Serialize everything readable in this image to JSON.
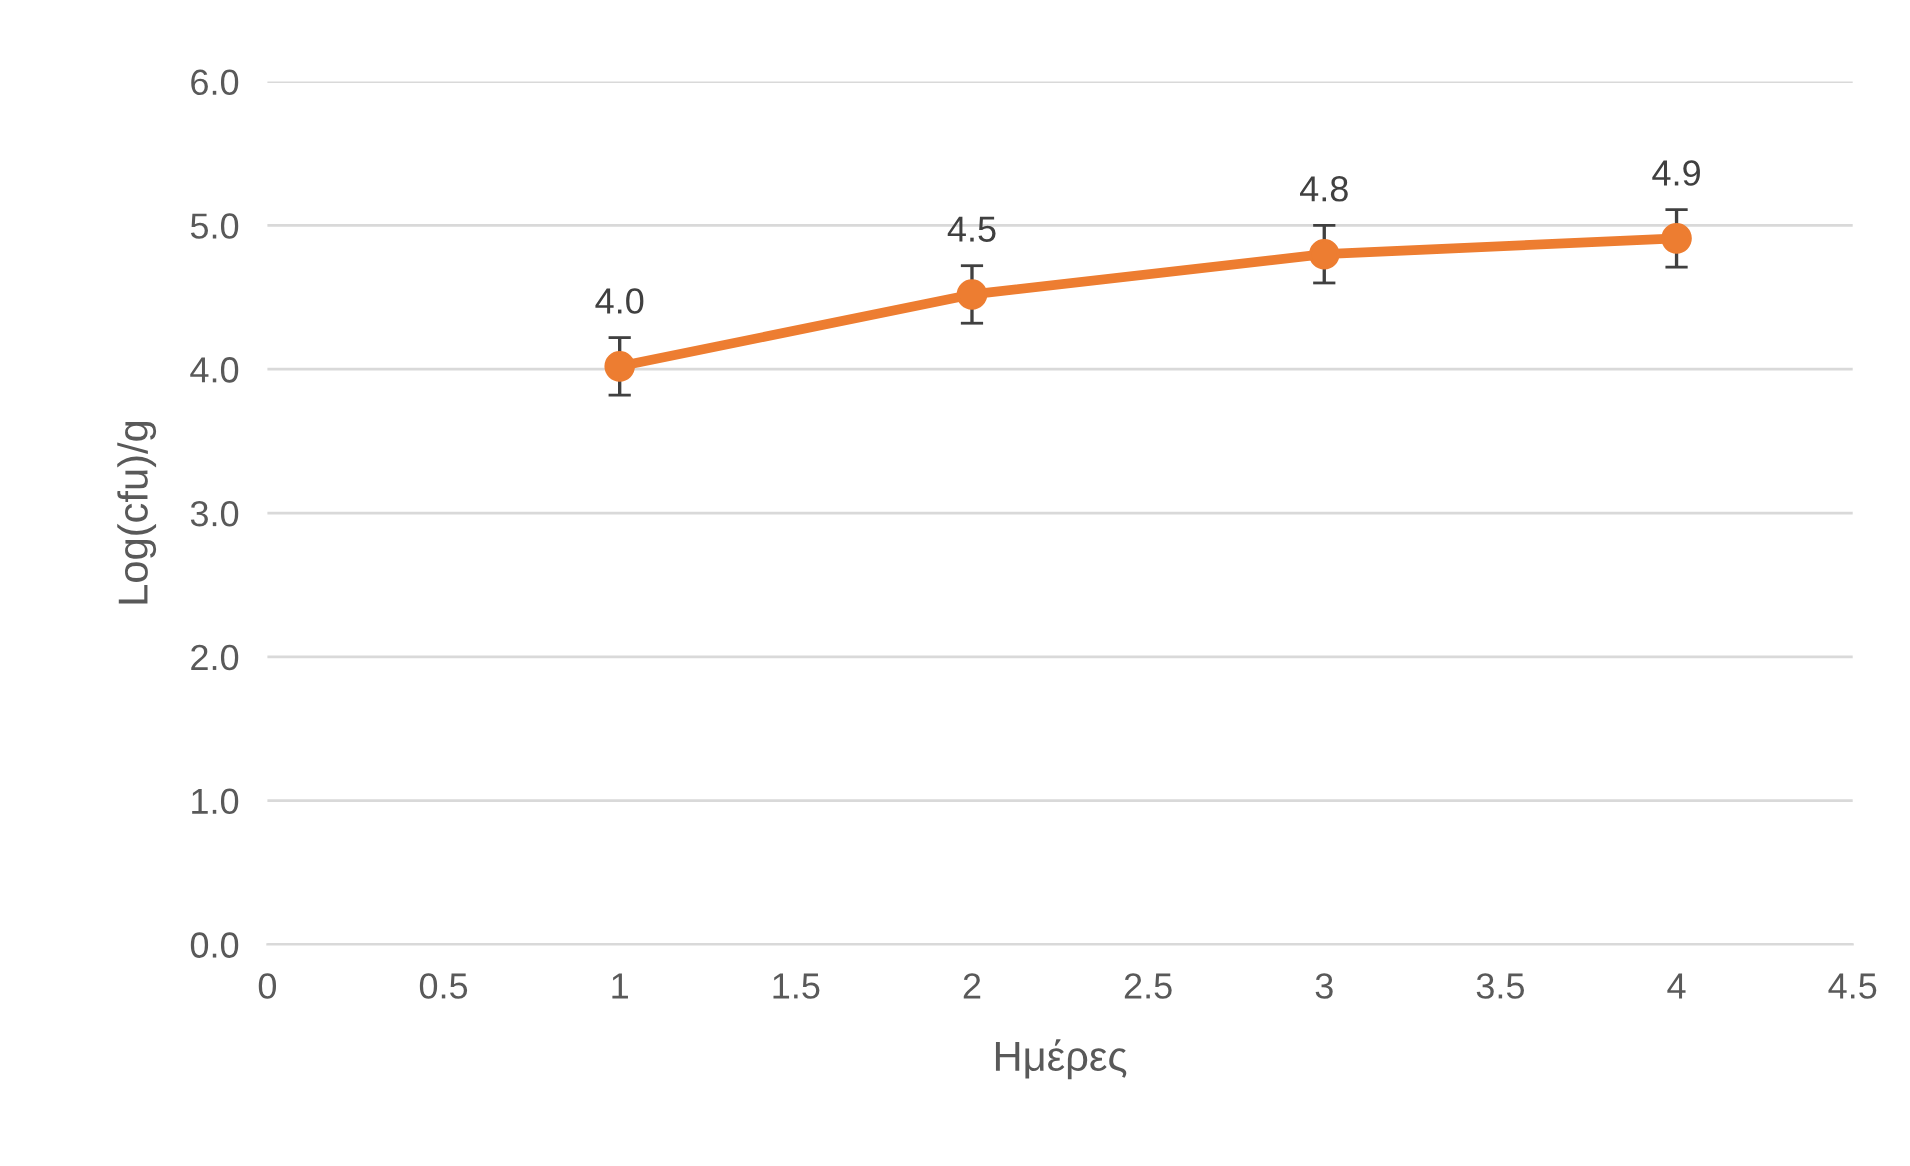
{
  "chart_data": {
    "type": "line",
    "xlabel": "Ημέρες",
    "ylabel": "Log(cfu)/g",
    "x": [
      1,
      2,
      3,
      4
    ],
    "series": [
      {
        "color": "#ed7d31",
        "values": [
          4.02,
          4.52,
          4.8,
          4.91
        ],
        "errors": [
          0.2,
          0.2,
          0.2,
          0.2
        ],
        "value_labels": [
          "4.0",
          "4.5",
          "4.8",
          "4.9"
        ]
      }
    ],
    "xlim": [
      0,
      4.5
    ],
    "xticks": [
      0,
      0.5,
      1,
      1.5,
      2,
      2.5,
      3,
      3.5,
      4,
      4.5
    ],
    "ylim": [
      0,
      6
    ],
    "yticks": [
      {
        "value": 0,
        "label": "0.0"
      },
      {
        "value": 1,
        "label": "1.0"
      },
      {
        "value": 2,
        "label": "2.0"
      },
      {
        "value": 3,
        "label": "3.0"
      },
      {
        "value": 4,
        "label": "4.0"
      },
      {
        "value": 5,
        "label": "5.0"
      },
      {
        "value": 6,
        "label": "6.0"
      }
    ],
    "grid": "y",
    "marker": "circle",
    "line_style": "solid"
  }
}
